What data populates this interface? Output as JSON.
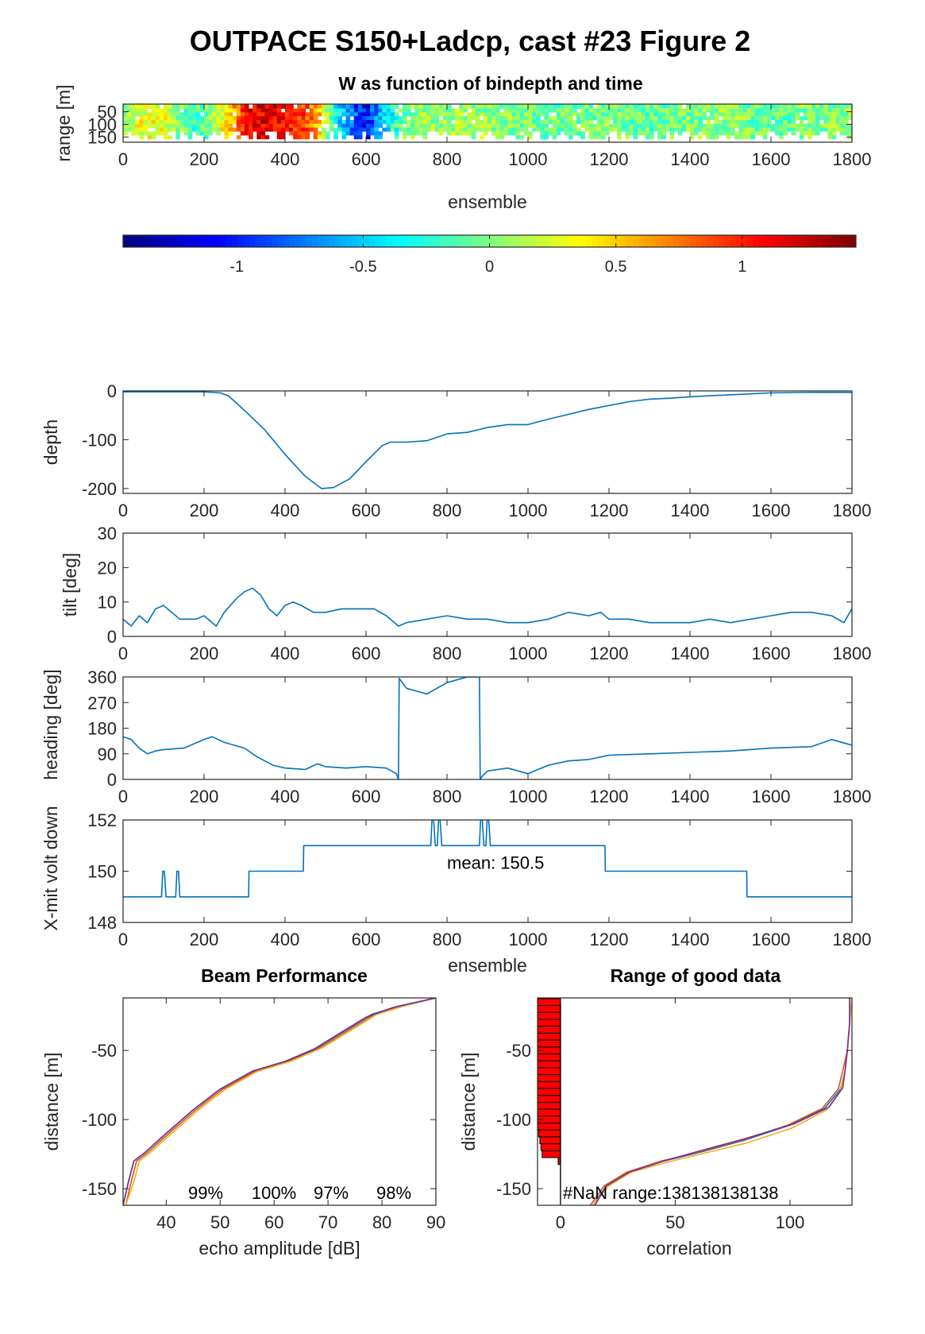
{
  "figure_title": "OUTPACE S150+Ladcp, cast #23 Figure 2",
  "colors": {
    "line": "#0072bd",
    "bar": "#ff0000",
    "axis": "#262626"
  },
  "chart_data": [
    {
      "id": "w_image",
      "type": "heatmap",
      "title": "W as function of bindepth and time",
      "xlabel": "ensemble",
      "ylabel": "range [m]",
      "xlim": [
        0,
        1800
      ],
      "ylim": [
        20,
        170
      ],
      "xticks": [
        0,
        200,
        400,
        600,
        800,
        1000,
        1200,
        1400,
        1600,
        1800
      ],
      "yticks": [
        50,
        100,
        150
      ],
      "colormap": "jet",
      "clim": [
        -1.45,
        1.45
      ],
      "colorbar_ticks": [
        -1,
        -0.5,
        0,
        0.5,
        1
      ],
      "colorbar_ticklabels": [
        "-1",
        "-0.5",
        "0",
        "0.5",
        "1"
      ],
      "profile": [
        {
          "x": 0,
          "w": 0.05
        },
        {
          "x": 40,
          "w": 0.3
        },
        {
          "x": 80,
          "w": 0.4
        },
        {
          "x": 120,
          "w": 0.15
        },
        {
          "x": 170,
          "w": -0.2
        },
        {
          "x": 220,
          "w": 0.05
        },
        {
          "x": 270,
          "w": 0.6
        },
        {
          "x": 310,
          "w": 1.1
        },
        {
          "x": 360,
          "w": 1.2
        },
        {
          "x": 400,
          "w": 1.05
        },
        {
          "x": 440,
          "w": 0.95
        },
        {
          "x": 480,
          "w": 0.6
        },
        {
          "x": 520,
          "w": -0.3
        },
        {
          "x": 560,
          "w": -0.7
        },
        {
          "x": 600,
          "w": -1.05
        },
        {
          "x": 640,
          "w": -0.5
        },
        {
          "x": 700,
          "w": 0.0
        },
        {
          "x": 800,
          "w": 0.1
        },
        {
          "x": 900,
          "w": 0.05
        },
        {
          "x": 1000,
          "w": 0.0
        },
        {
          "x": 1100,
          "w": -0.05
        },
        {
          "x": 1200,
          "w": 0.0
        },
        {
          "x": 1300,
          "w": -0.1
        },
        {
          "x": 1400,
          "w": 0.0
        },
        {
          "x": 1500,
          "w": 0.05
        },
        {
          "x": 1600,
          "w": -0.1
        },
        {
          "x": 1700,
          "w": 0.0
        },
        {
          "x": 1800,
          "w": 0.05
        }
      ]
    },
    {
      "id": "depth",
      "type": "line",
      "xlabel": "",
      "ylabel": "depth",
      "xlim": [
        0,
        1800
      ],
      "ylim": [
        -210,
        0
      ],
      "xticks": [
        0,
        200,
        400,
        600,
        800,
        1000,
        1200,
        1400,
        1600,
        1800
      ],
      "yticks": [
        0,
        -100,
        -200
      ],
      "series": [
        {
          "x": [
            0,
            100,
            200,
            240,
            260,
            300,
            350,
            400,
            450,
            490,
            520,
            560,
            600,
            640,
            660,
            700,
            750,
            800,
            850,
            900,
            950,
            1000,
            1040,
            1100,
            1150,
            1200,
            1250,
            1300,
            1350,
            1400,
            1450,
            1500,
            1550,
            1600,
            1700,
            1800
          ],
          "y": [
            -2,
            -2,
            -2,
            -4,
            -10,
            -40,
            -80,
            -130,
            -175,
            -200,
            -198,
            -180,
            -145,
            -112,
            -105,
            -105,
            -102,
            -88,
            -85,
            -75,
            -69,
            -69,
            -60,
            -48,
            -38,
            -30,
            -22,
            -17,
            -15,
            -12,
            -10,
            -8,
            -6,
            -4,
            -3,
            -3
          ]
        }
      ]
    },
    {
      "id": "tilt",
      "type": "line",
      "xlabel": "",
      "ylabel": "tilt [deg]",
      "xlim": [
        0,
        1800
      ],
      "ylim": [
        0,
        30
      ],
      "xticks": [
        0,
        200,
        400,
        600,
        800,
        1000,
        1200,
        1400,
        1600,
        1800
      ],
      "yticks": [
        0,
        10,
        20,
        30
      ],
      "series": [
        {
          "x": [
            0,
            20,
            40,
            60,
            80,
            100,
            140,
            180,
            200,
            230,
            250,
            280,
            300,
            320,
            340,
            360,
            380,
            400,
            420,
            440,
            470,
            500,
            540,
            580,
            620,
            650,
            680,
            700,
            750,
            800,
            850,
            900,
            950,
            1000,
            1050,
            1100,
            1150,
            1180,
            1200,
            1250,
            1300,
            1350,
            1400,
            1450,
            1500,
            1550,
            1600,
            1650,
            1700,
            1750,
            1780,
            1800
          ],
          "y": [
            5,
            3,
            6,
            4,
            8,
            9,
            5,
            5,
            6,
            3,
            7,
            11,
            13,
            14,
            12,
            8,
            6,
            9,
            10,
            9,
            7,
            7,
            8,
            8,
            8,
            6,
            3,
            4,
            5,
            6,
            5,
            5,
            4,
            4,
            5,
            7,
            6,
            7,
            5,
            5,
            4,
            4,
            4,
            5,
            4,
            5,
            6,
            7,
            7,
            6,
            4,
            8
          ]
        }
      ]
    },
    {
      "id": "heading",
      "type": "line",
      "xlabel": "",
      "ylabel": "heading [deg]",
      "xlim": [
        0,
        1800
      ],
      "ylim": [
        0,
        360
      ],
      "xticks": [
        0,
        200,
        400,
        600,
        800,
        1000,
        1200,
        1400,
        1600,
        1800
      ],
      "yticks": [
        0,
        90,
        180,
        270,
        360
      ],
      "series": [
        {
          "x": [
            0,
            20,
            40,
            60,
            80,
            100,
            150,
            200,
            220,
            250,
            300,
            330,
            370,
            400,
            450,
            480,
            500,
            550,
            600,
            650,
            675,
            680,
            682,
            700,
            750,
            800,
            850,
            880,
            882,
            886,
            900,
            950,
            1000,
            1050,
            1100,
            1150,
            1200,
            1300,
            1400,
            1500,
            1600,
            1700,
            1750,
            1800
          ],
          "y": [
            150,
            140,
            110,
            90,
            100,
            105,
            110,
            140,
            150,
            130,
            110,
            80,
            50,
            40,
            35,
            55,
            45,
            40,
            45,
            40,
            20,
            0,
            355,
            320,
            300,
            340,
            360,
            360,
            0,
            10,
            30,
            40,
            20,
            50,
            65,
            70,
            85,
            90,
            95,
            100,
            110,
            115,
            140,
            120
          ]
        }
      ]
    },
    {
      "id": "volt",
      "type": "line",
      "xlabel": "ensemble",
      "ylabel": "X-mit volt down",
      "xlim": [
        0,
        1800
      ],
      "ylim": [
        148,
        152
      ],
      "xticks": [
        0,
        200,
        400,
        600,
        800,
        1000,
        1200,
        1400,
        1600,
        1800
      ],
      "yticks": [
        148,
        150,
        152
      ],
      "annotation": "mean: 150.5",
      "series": [
        {
          "x": [
            0,
            95,
            98,
            102,
            106,
            130,
            133,
            137,
            140,
            310,
            311,
            445,
            446,
            760,
            763,
            767,
            771,
            776,
            779,
            783,
            787,
            880,
            883,
            887,
            891,
            896,
            899,
            903,
            907,
            1190,
            1191,
            1540,
            1541,
            1800
          ],
          "y": [
            149,
            149,
            150,
            150,
            149,
            149,
            150,
            150,
            149,
            149,
            150,
            150,
            151,
            151,
            152,
            152,
            151,
            151,
            152,
            152,
            151,
            151,
            152,
            152,
            151,
            151,
            152,
            152,
            151,
            151,
            150,
            150,
            149,
            149
          ]
        }
      ]
    },
    {
      "id": "beam",
      "type": "line",
      "title": "Beam Performance",
      "xlabel": "echo amplitude [dB]",
      "ylabel": "distance [m]",
      "xlim": [
        32,
        90
      ],
      "ylim": [
        -162,
        -12
      ],
      "xticks": [
        40,
        50,
        60,
        70,
        80,
        90
      ],
      "yticks": [
        -50,
        -100,
        -150
      ],
      "beam_pct": [
        "99%",
        "100%",
        "97%",
        "98%"
      ],
      "series": [
        {
          "color": "#0072bd",
          "x": [
            32,
            33,
            34,
            36,
            40,
            45,
            50,
            56,
            62,
            68,
            73,
            78,
            83,
            90
          ],
          "y": [
            -162,
            -145,
            -130,
            -124,
            -110,
            -93,
            -78,
            -65,
            -58,
            -48,
            -36,
            -24,
            -18,
            -12
          ]
        },
        {
          "color": "#d95319",
          "x": [
            32.5,
            33.5,
            34.5,
            36.5,
            40.5,
            45.5,
            50.5,
            56.5,
            62.5,
            68.5,
            73.5,
            78.5,
            83.5,
            90
          ],
          "y": [
            -162,
            -145,
            -130,
            -124,
            -110,
            -93,
            -78,
            -65,
            -58,
            -48,
            -36,
            -24,
            -18,
            -12
          ]
        },
        {
          "color": "#edb120",
          "x": [
            32.5,
            34,
            35,
            37,
            41,
            46,
            51,
            57,
            63,
            69,
            74,
            79,
            84,
            90
          ],
          "y": [
            -162,
            -145,
            -130,
            -124,
            -110,
            -93,
            -78,
            -65,
            -58,
            -48,
            -36,
            -24,
            -18,
            -12
          ]
        },
        {
          "color": "#7e2f8e",
          "x": [
            32,
            33,
            34,
            36,
            40,
            45,
            50,
            56,
            62,
            67,
            72,
            77,
            82,
            90
          ],
          "y": [
            -162,
            -145,
            -130,
            -124,
            -110,
            -93,
            -78,
            -65,
            -58,
            -50,
            -38,
            -26,
            -19,
            -12
          ]
        }
      ]
    },
    {
      "id": "range",
      "type": "line",
      "title": "Range of good data",
      "xlabel": "correlation",
      "ylabel": "distance [m]",
      "xlim": [
        -10,
        127
      ],
      "ylim": [
        -162,
        -12
      ],
      "xticks": [
        0,
        50,
        100
      ],
      "yticks": [
        -50,
        -100,
        -150
      ],
      "annotation": "#NaN range:138138138138",
      "histogram": {
        "bins": [
          -15,
          -20,
          -25,
          -30,
          -35,
          -40,
          -45,
          -50,
          -55,
          -60,
          -65,
          -70,
          -75,
          -80,
          -85,
          -90,
          -95,
          -100,
          -105,
          -110,
          -115,
          -120,
          -125,
          -130
        ],
        "counts": [
          -10,
          -10,
          -10,
          -10,
          -10,
          -10,
          -10,
          -10,
          -10,
          -10,
          -10,
          -10,
          -10,
          -10,
          -10,
          -10,
          -10,
          -10,
          -10,
          -9.5,
          -9,
          -8.5,
          -8,
          -1
        ]
      },
      "series": [
        {
          "color": "#0072bd",
          "x": [
            14,
            20,
            30,
            45,
            60,
            80,
            100,
            115,
            122,
            124,
            125,
            126,
            126
          ],
          "y": [
            -162,
            -148,
            -138,
            -130,
            -124,
            -115,
            -104,
            -92,
            -78,
            -65,
            -50,
            -30,
            -12
          ]
        },
        {
          "color": "#d95319",
          "x": [
            13,
            19,
            29,
            44,
            59,
            79,
            99,
            114,
            121,
            123,
            125,
            126,
            127
          ],
          "y": [
            -162,
            -148,
            -138,
            -130,
            -124,
            -115,
            -104,
            -92,
            -78,
            -65,
            -50,
            -30,
            -12
          ]
        },
        {
          "color": "#edb120",
          "x": [
            14,
            21,
            31,
            46,
            61,
            81,
            101,
            116,
            122,
            124,
            125,
            126,
            127
          ],
          "y": [
            -162,
            -148,
            -138,
            -131,
            -125,
            -117,
            -106,
            -93,
            -79,
            -65,
            -50,
            -30,
            -12
          ]
        },
        {
          "color": "#7e2f8e",
          "x": [
            15,
            20,
            30,
            45,
            60,
            80,
            102,
            117,
            123,
            124,
            125,
            126,
            126
          ],
          "y": [
            -162,
            -148,
            -138,
            -130,
            -123,
            -114,
            -103,
            -91,
            -77,
            -65,
            -50,
            -30,
            -12
          ]
        }
      ]
    }
  ]
}
